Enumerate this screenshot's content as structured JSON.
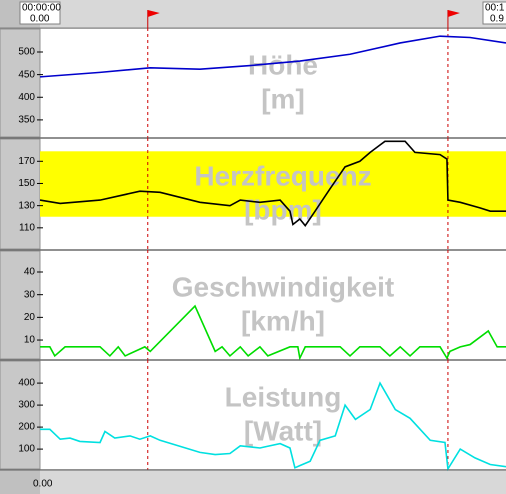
{
  "ruler": {
    "top_time": "00:00:00",
    "top_start": "0.00",
    "top_end_time": "00:1",
    "top_end": "0.9",
    "bottom_start": "0.00"
  },
  "markers": [
    0.219,
    0.829
  ],
  "chart_data": [
    {
      "type": "line",
      "title": "Höhe",
      "unit_label": "[m]",
      "color": "#0000cc",
      "xlim": [
        0,
        0.947
      ],
      "ylim": [
        310,
        553
      ],
      "yticks": [
        350,
        400,
        450,
        500
      ],
      "x": [
        0,
        0.122,
        0.224,
        0.325,
        0.427,
        0.528,
        0.63,
        0.732,
        0.813,
        0.874,
        0.947
      ],
      "values": [
        445,
        455,
        465,
        462,
        470,
        480,
        495,
        520,
        535,
        532,
        520
      ]
    },
    {
      "type": "line",
      "title": "Herzfrequenz",
      "unit_label": "[bpm]",
      "color": "#000000",
      "zone": [
        120,
        179
      ],
      "zone_color": "#ffff00",
      "xlim": [
        0,
        0.947
      ],
      "ylim": [
        90,
        191
      ],
      "yticks": [
        110,
        130,
        150,
        170
      ],
      "x": [
        0,
        0.041,
        0.122,
        0.203,
        0.244,
        0.325,
        0.386,
        0.407,
        0.447,
        0.488,
        0.508,
        0.514,
        0.528,
        0.539,
        0.559,
        0.589,
        0.62,
        0.65,
        0.671,
        0.701,
        0.742,
        0.762,
        0.813,
        0.827,
        0.829,
        0.854,
        0.894,
        0.915,
        0.947
      ],
      "values": [
        135,
        132,
        135,
        143,
        142,
        133,
        130,
        135,
        133,
        135,
        125,
        113,
        118,
        112,
        125,
        145,
        165,
        170,
        178,
        188,
        188,
        178,
        176,
        172,
        135,
        133,
        128,
        125,
        125
      ]
    },
    {
      "type": "line",
      "title": "Geschwindigkeit",
      "unit_label": "[km/h]",
      "color": "#00dd00",
      "xlim": [
        0,
        0.947
      ],
      "ylim": [
        1.2,
        49.7
      ],
      "yticks": [
        10,
        20,
        30,
        40
      ],
      "x": [
        0,
        0.02,
        0.03,
        0.051,
        0.071,
        0.122,
        0.142,
        0.159,
        0.173,
        0.213,
        0.224,
        0.315,
        0.356,
        0.37,
        0.386,
        0.407,
        0.423,
        0.447,
        0.463,
        0.508,
        0.524,
        0.528,
        0.539,
        0.61,
        0.63,
        0.65,
        0.691,
        0.711,
        0.732,
        0.752,
        0.772,
        0.813,
        0.827,
        0.833,
        0.854,
        0.874,
        0.911,
        0.929,
        0.947
      ],
      "values": [
        7,
        7,
        3,
        7,
        7,
        7,
        3,
        7,
        3,
        7,
        5,
        25,
        5,
        7,
        3,
        7,
        3,
        7,
        3,
        7,
        7,
        2,
        7,
        7,
        3,
        7,
        7,
        3,
        7,
        3,
        7,
        7,
        2,
        5,
        7,
        8,
        14,
        7,
        7
      ]
    },
    {
      "type": "line",
      "title": "Leistung",
      "unit_label": "[Watt]",
      "color": "#00e0e0",
      "xlim": [
        0,
        0.947
      ],
      "ylim": [
        5,
        505
      ],
      "yticks": [
        100,
        200,
        300,
        400
      ],
      "x": [
        0,
        0.02,
        0.041,
        0.061,
        0.081,
        0.122,
        0.132,
        0.152,
        0.183,
        0.203,
        0.224,
        0.244,
        0.325,
        0.356,
        0.386,
        0.407,
        0.447,
        0.457,
        0.488,
        0.508,
        0.518,
        0.528,
        0.549,
        0.569,
        0.6,
        0.62,
        0.641,
        0.671,
        0.691,
        0.722,
        0.752,
        0.793,
        0.823,
        0.829,
        0.854,
        0.884,
        0.915,
        0.947
      ],
      "values": [
        190,
        190,
        145,
        150,
        135,
        130,
        180,
        150,
        160,
        145,
        160,
        140,
        85,
        75,
        80,
        115,
        105,
        110,
        125,
        105,
        15,
        25,
        45,
        140,
        160,
        300,
        235,
        280,
        400,
        280,
        240,
        140,
        130,
        10,
        100,
        60,
        30,
        20
      ]
    }
  ]
}
